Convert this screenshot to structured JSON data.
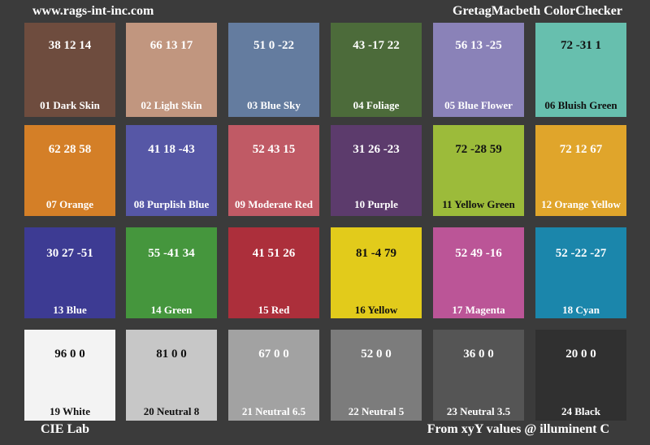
{
  "header": {
    "site": "www.rags-int-inc.com",
    "title": "GretagMacbeth ColorChecker"
  },
  "footer": {
    "colorspace": "CIE Lab",
    "source": "From xyY values @ illuminent C"
  },
  "patches": [
    {
      "lab": "38 12 14",
      "name": "01 Dark Skin",
      "color": "#6e4c3e"
    },
    {
      "lab": "66 13 17",
      "name": "02 Light Skin",
      "color": "#c1967f"
    },
    {
      "lab": "51 0 -22",
      "name": "03 Blue Sky",
      "color": "#647c9f"
    },
    {
      "lab": "43 -17 22",
      "name": "04 Foliage",
      "color": "#4c6b3a"
    },
    {
      "lab": "56 13 -25",
      "name": "05 Blue Flower",
      "color": "#8a82b8"
    },
    {
      "lab": "72 -31 1",
      "name": "06 Bluish Green",
      "color": "#67bfae"
    },
    {
      "lab": "62 28 58",
      "name": "07 Orange",
      "color": "#d47f27"
    },
    {
      "lab": "41 18 -43",
      "name": "08 Purplish Blue",
      "color": "#5657a6"
    },
    {
      "lab": "52 43 15",
      "name": "09 Moderate Red",
      "color": "#c05a65"
    },
    {
      "lab": "31 26 -23",
      "name": "10 Purple",
      "color": "#5c3b6c"
    },
    {
      "lab": "72 -28 59",
      "name": "11 Yellow Green",
      "color": "#9cbb3a"
    },
    {
      "lab": "72 12 67",
      "name": "12 Orange Yellow",
      "color": "#e0a52b"
    },
    {
      "lab": "30 27 -51",
      "name": "13 Blue",
      "color": "#3d3b93"
    },
    {
      "lab": "55 -41 34",
      "name": "14 Green",
      "color": "#45963d"
    },
    {
      "lab": "41 51 26",
      "name": "15 Red",
      "color": "#ac2f3b"
    },
    {
      "lab": "81 -4 79",
      "name": "16 Yellow",
      "color": "#e2cb1b"
    },
    {
      "lab": "52 49 -16",
      "name": "17 Magenta",
      "color": "#bb5597"
    },
    {
      "lab": "52 -22 -27",
      "name": "18 Cyan",
      "color": "#1b86ab"
    },
    {
      "lab": "96 0 0",
      "name": "19 White",
      "color": "#f3f3f3"
    },
    {
      "lab": "81 0 0",
      "name": "20 Neutral 8",
      "color": "#c7c7c7"
    },
    {
      "lab": "67 0 0",
      "name": "21 Neutral 6.5",
      "color": "#a2a2a2"
    },
    {
      "lab": "52 0 0",
      "name": "22 Neutral 5",
      "color": "#7c7c7c"
    },
    {
      "lab": "36 0 0",
      "name": "23 Neutral 3.5",
      "color": "#555555"
    },
    {
      "lab": "20 0 0",
      "name": "24 Black",
      "color": "#303030"
    }
  ]
}
